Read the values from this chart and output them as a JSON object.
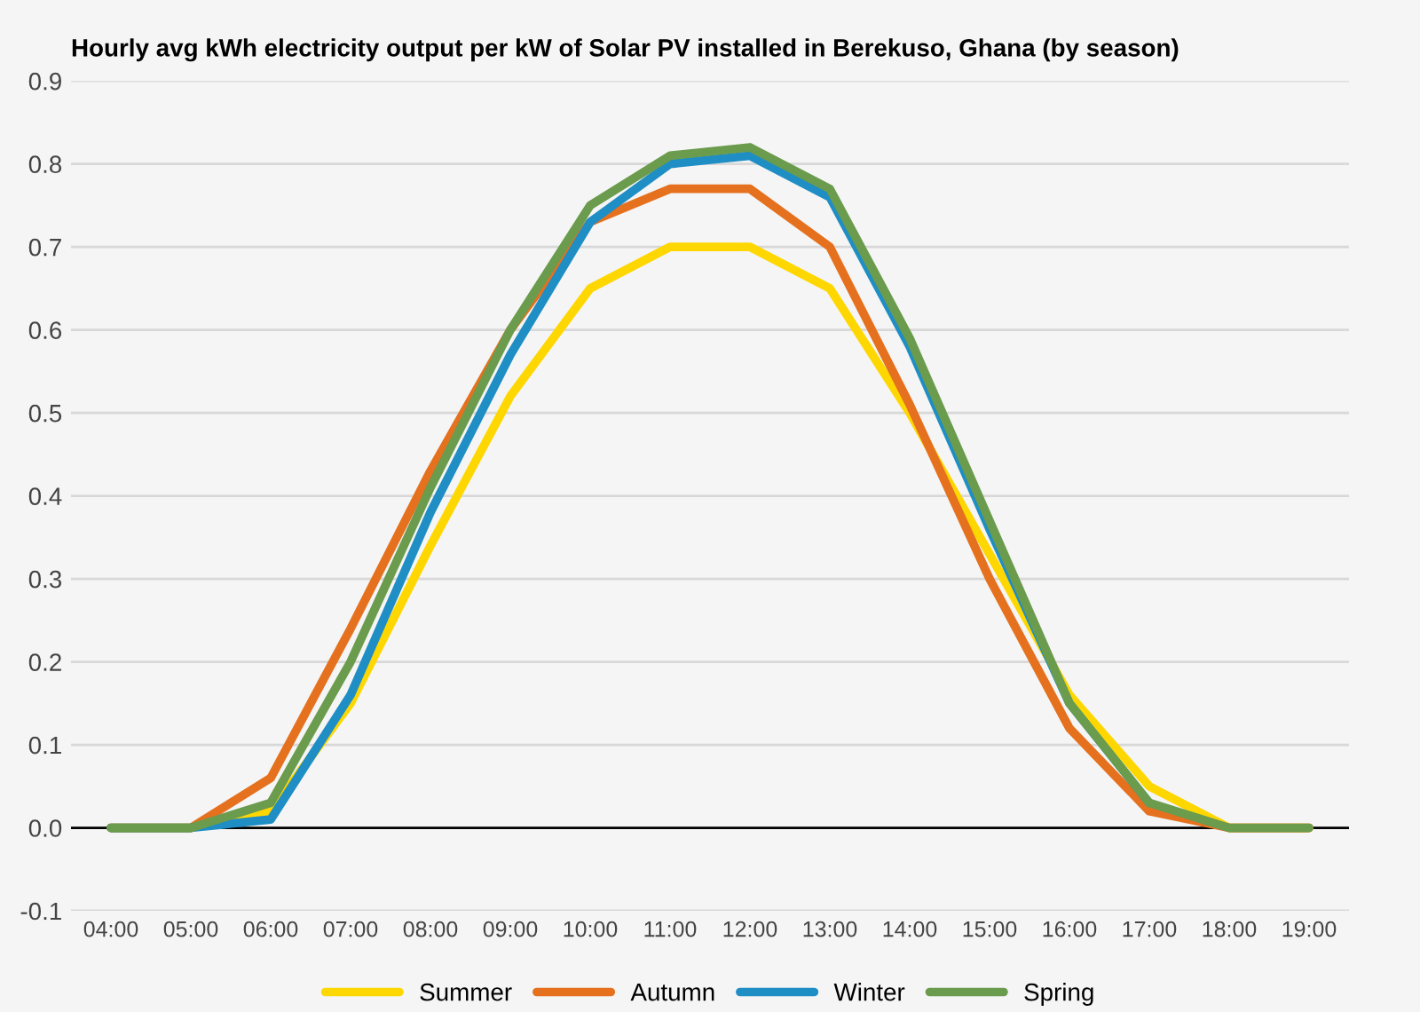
{
  "chart_data": {
    "type": "line",
    "title": "Hourly avg kWh electricity output per kW of Solar PV installed in Berekuso, Ghana (by season)",
    "x": [
      4,
      5,
      6,
      7,
      8,
      9,
      10,
      11,
      12,
      13,
      14,
      15,
      16,
      17,
      18,
      19
    ],
    "series": [
      {
        "name": "Summer",
        "color": "#ffd700",
        "values": [
          0,
          0,
          0.02,
          0.15,
          0.34,
          0.52,
          0.65,
          0.7,
          0.7,
          0.65,
          0.5,
          0.33,
          0.16,
          0.05,
          0,
          0
        ]
      },
      {
        "name": "Autumn",
        "color": "#e5711f",
        "values": [
          0,
          0,
          0.06,
          0.24,
          0.43,
          0.6,
          0.73,
          0.77,
          0.77,
          0.7,
          0.51,
          0.3,
          0.12,
          0.02,
          0,
          0
        ]
      },
      {
        "name": "Winter",
        "color": "#1f8ec4",
        "values": [
          0,
          0,
          0.01,
          0.16,
          0.38,
          0.57,
          0.73,
          0.8,
          0.81,
          0.76,
          0.58,
          0.36,
          0.15,
          0.03,
          null,
          null
        ]
      },
      {
        "name": "Spring",
        "color": "#6b9b4d",
        "values": [
          0,
          0,
          0.03,
          0.2,
          0.41,
          0.6,
          0.75,
          0.81,
          0.82,
          0.77,
          0.59,
          0.37,
          0.15,
          0.03,
          0,
          0
        ]
      }
    ],
    "xlim": [
      3.5,
      19.5
    ],
    "ylim": [
      -0.1,
      0.9
    ],
    "xticks": [
      {
        "value": 4,
        "label": "04:00"
      },
      {
        "value": 5,
        "label": "05:00"
      },
      {
        "value": 6,
        "label": "06:00"
      },
      {
        "value": 7,
        "label": "07:00"
      },
      {
        "value": 8,
        "label": "08:00"
      },
      {
        "value": 9,
        "label": "09:00"
      },
      {
        "value": 10,
        "label": "10:00"
      },
      {
        "value": 11,
        "label": "11:00"
      },
      {
        "value": 12,
        "label": "12:00"
      },
      {
        "value": 13,
        "label": "13:00"
      },
      {
        "value": 14,
        "label": "14:00"
      },
      {
        "value": 15,
        "label": "15:00"
      },
      {
        "value": 16,
        "label": "16:00"
      },
      {
        "value": 17,
        "label": "17:00"
      },
      {
        "value": 18,
        "label": "18:00"
      },
      {
        "value": 19,
        "label": "19:00"
      }
    ],
    "yticks": [
      -0.1,
      {
        "value": 0,
        "label": "0.0"
      },
      0.1,
      0.2,
      0.3,
      0.4,
      0.5,
      0.6,
      0.7,
      0.8,
      0.9
    ],
    "ref_lines": [
      {
        "axis": "y",
        "value": 0,
        "color": "#000000"
      }
    ],
    "grid": "y",
    "legend": "bottom",
    "marker": "none",
    "line_style": "solid"
  }
}
